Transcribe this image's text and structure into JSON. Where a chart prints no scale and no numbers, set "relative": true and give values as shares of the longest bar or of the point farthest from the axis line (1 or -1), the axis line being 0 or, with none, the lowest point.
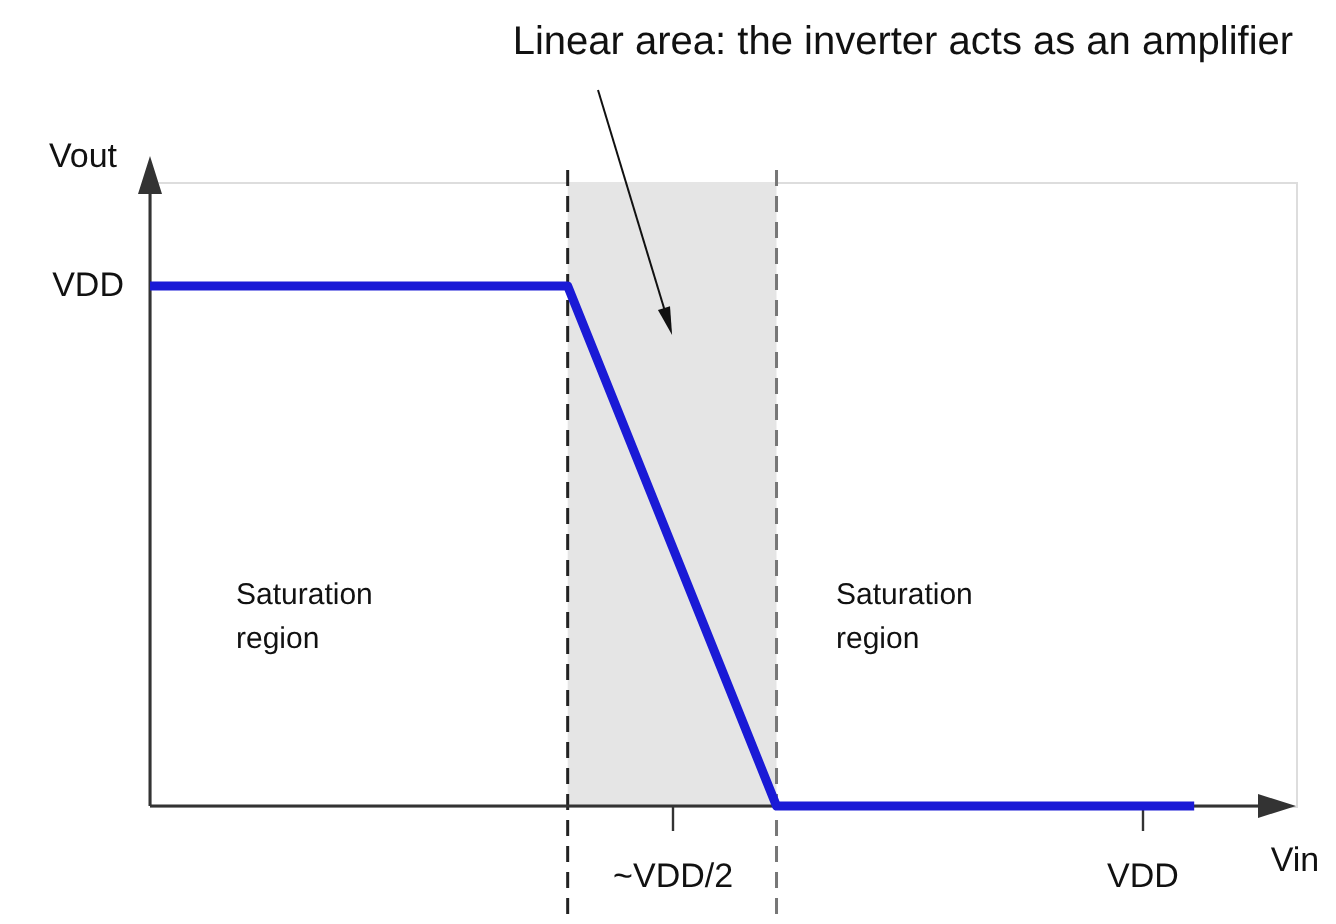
{
  "chart_data": {
    "type": "line",
    "relative": true,
    "xlabel": "Vin",
    "ylabel": "Vout",
    "categories": [
      null,
      null,
      null,
      null,
      null,
      null,
      null,
      null,
      null,
      null,
      "~VDD/2",
      null,
      null,
      null,
      null,
      null,
      null,
      null,
      null,
      "VDD",
      null
    ],
    "series": [
      {
        "color": "#1a1ad6",
        "values": [
          1,
          1,
          1,
          1,
          1,
          1,
          1,
          1,
          1,
          0.75,
          0.5,
          0.25,
          0,
          0,
          0,
          0,
          0,
          0,
          0,
          0,
          0
        ]
      }
    ],
    "annotations": [
      "Linear area: the inverter acts as an amplifier",
      "VDD",
      "Saturation region",
      "Saturation region"
    ]
  }
}
